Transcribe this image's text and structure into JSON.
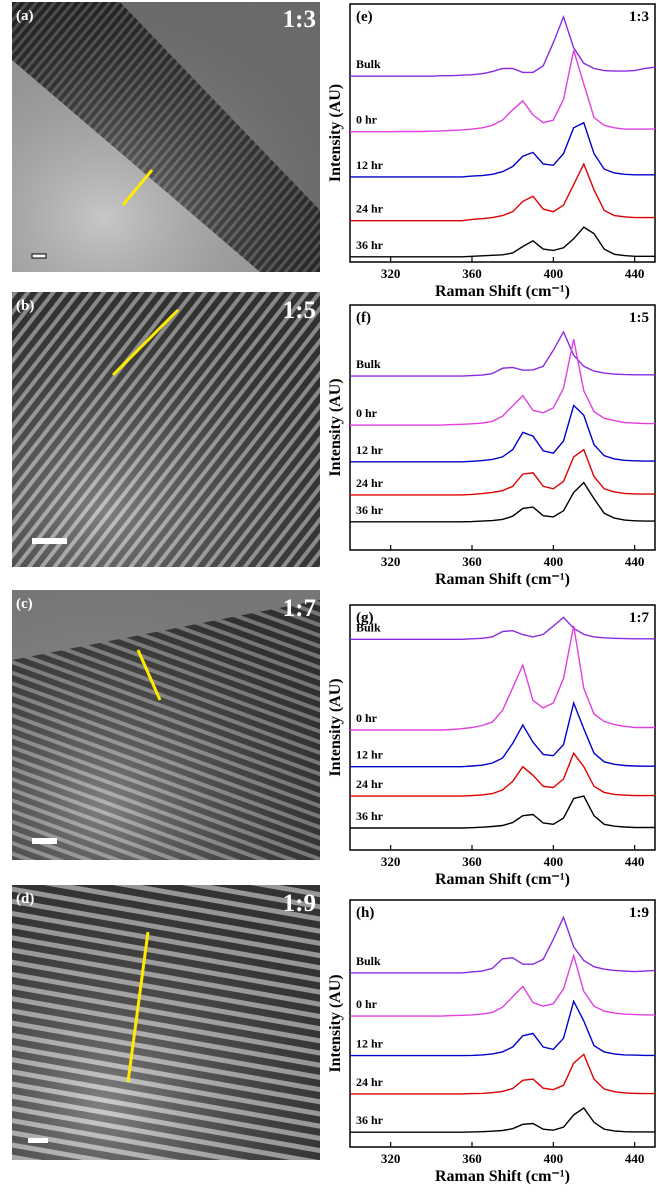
{
  "images": [
    {
      "label": "(a)",
      "ratio": "1:3"
    },
    {
      "label": "(b)",
      "ratio": "1:5"
    },
    {
      "label": "(c)",
      "ratio": "1:7"
    },
    {
      "label": "(d)",
      "ratio": "1:9"
    }
  ],
  "chart_data": [
    {
      "type": "line",
      "panel_label": "(e)",
      "annotation": "1:3",
      "x_label": "Raman Shift (cm⁻¹)",
      "y_label": "Intensity (AU)",
      "xlim": [
        300,
        450
      ],
      "xticks": [
        320,
        360,
        400,
        440
      ],
      "ylim": [
        0,
        10
      ],
      "x": [
        300,
        305,
        310,
        315,
        320,
        325,
        330,
        335,
        340,
        345,
        350,
        355,
        360,
        365,
        370,
        375,
        380,
        385,
        390,
        395,
        400,
        405,
        410,
        415,
        420,
        425,
        430,
        435,
        440,
        445,
        450
      ],
      "series": [
        {
          "name": "Bulk",
          "color": "#8a2be2",
          "values": [
            7.2,
            7.2,
            7.2,
            7.2,
            7.2,
            7.2,
            7.2,
            7.2,
            7.2,
            7.22,
            7.22,
            7.24,
            7.26,
            7.3,
            7.38,
            7.5,
            7.5,
            7.35,
            7.35,
            7.6,
            8.5,
            9.5,
            8.3,
            7.7,
            7.5,
            7.42,
            7.4,
            7.4,
            7.42,
            7.5,
            7.55
          ]
        },
        {
          "name": "0 hr",
          "color": "#e040e0",
          "values": [
            5.05,
            5.05,
            5.05,
            5.05,
            5.05,
            5.06,
            5.06,
            5.06,
            5.07,
            5.08,
            5.1,
            5.12,
            5.15,
            5.2,
            5.3,
            5.5,
            5.9,
            6.25,
            5.7,
            5.4,
            5.5,
            6.3,
            8.2,
            6.9,
            5.6,
            5.3,
            5.2,
            5.15,
            5.15,
            5.15,
            5.15
          ]
        },
        {
          "name": "12 hr",
          "color": "#0000cc",
          "values": [
            3.3,
            3.3,
            3.3,
            3.3,
            3.3,
            3.3,
            3.3,
            3.3,
            3.3,
            3.3,
            3.3,
            3.3,
            3.33,
            3.35,
            3.4,
            3.5,
            3.7,
            4.1,
            4.25,
            3.8,
            3.75,
            4.2,
            5.2,
            5.4,
            4.2,
            3.6,
            3.45,
            3.4,
            3.38,
            3.38,
            3.38
          ]
        },
        {
          "name": "24 hr",
          "color": "#dd0000",
          "values": [
            1.6,
            1.6,
            1.6,
            1.6,
            1.6,
            1.6,
            1.6,
            1.6,
            1.6,
            1.6,
            1.6,
            1.6,
            1.65,
            1.68,
            1.72,
            1.8,
            1.95,
            2.35,
            2.55,
            2.05,
            1.95,
            2.2,
            3.0,
            3.8,
            2.8,
            2.0,
            1.8,
            1.75,
            1.72,
            1.72,
            1.72
          ]
        },
        {
          "name": "36 hr",
          "color": "#000000",
          "values": [
            0.2,
            0.2,
            0.2,
            0.2,
            0.2,
            0.2,
            0.2,
            0.2,
            0.2,
            0.2,
            0.2,
            0.2,
            0.22,
            0.24,
            0.26,
            0.28,
            0.35,
            0.6,
            0.82,
            0.5,
            0.45,
            0.55,
            0.9,
            1.35,
            1.1,
            0.5,
            0.3,
            0.25,
            0.22,
            0.22,
            0.22
          ]
        }
      ]
    },
    {
      "type": "line",
      "panel_label": "(f)",
      "annotation": "1:5",
      "x_label": "Raman Shift (cm⁻¹)",
      "y_label": "Intensity (AU)",
      "xlim": [
        300,
        450
      ],
      "xticks": [
        320,
        360,
        400,
        440
      ],
      "ylim": [
        0,
        10
      ],
      "x": [
        300,
        305,
        310,
        315,
        320,
        325,
        330,
        335,
        340,
        345,
        350,
        355,
        360,
        365,
        370,
        375,
        380,
        385,
        390,
        395,
        400,
        405,
        410,
        415,
        420,
        425,
        430,
        435,
        440,
        445,
        450
      ],
      "series": [
        {
          "name": "Bulk",
          "color": "#8a2be2",
          "values": [
            7.1,
            7.1,
            7.1,
            7.1,
            7.1,
            7.1,
            7.1,
            7.1,
            7.1,
            7.1,
            7.1,
            7.1,
            7.12,
            7.14,
            7.2,
            7.42,
            7.45,
            7.34,
            7.35,
            7.5,
            8.15,
            8.9,
            7.95,
            7.5,
            7.3,
            7.22,
            7.18,
            7.16,
            7.15,
            7.15,
            7.15
          ]
        },
        {
          "name": "0 hr",
          "color": "#e040e0",
          "values": [
            5.1,
            5.1,
            5.1,
            5.1,
            5.1,
            5.1,
            5.1,
            5.1,
            5.1,
            5.1,
            5.12,
            5.13,
            5.15,
            5.18,
            5.25,
            5.46,
            5.88,
            6.3,
            5.7,
            5.6,
            5.8,
            6.6,
            8.6,
            6.5,
            5.65,
            5.38,
            5.28,
            5.2,
            5.18,
            5.16,
            5.16
          ]
        },
        {
          "name": "12 hr",
          "color": "#0000cc",
          "values": [
            3.6,
            3.6,
            3.6,
            3.6,
            3.6,
            3.6,
            3.6,
            3.6,
            3.6,
            3.6,
            3.6,
            3.6,
            3.62,
            3.65,
            3.7,
            3.8,
            4.1,
            4.8,
            4.65,
            4.05,
            3.95,
            4.45,
            5.9,
            5.5,
            4.3,
            3.85,
            3.72,
            3.66,
            3.64,
            3.63,
            3.63
          ]
        },
        {
          "name": "24 hr",
          "color": "#dd0000",
          "values": [
            2.25,
            2.25,
            2.25,
            2.25,
            2.25,
            2.25,
            2.25,
            2.25,
            2.25,
            2.25,
            2.25,
            2.25,
            2.27,
            2.3,
            2.35,
            2.42,
            2.6,
            3.1,
            3.15,
            2.6,
            2.5,
            2.8,
            3.8,
            4.1,
            3.0,
            2.5,
            2.37,
            2.31,
            2.29,
            2.28,
            2.28
          ]
        },
        {
          "name": "36 hr",
          "color": "#000000",
          "values": [
            1.15,
            1.15,
            1.15,
            1.15,
            1.15,
            1.15,
            1.15,
            1.15,
            1.15,
            1.15,
            1.15,
            1.15,
            1.16,
            1.18,
            1.2,
            1.25,
            1.38,
            1.7,
            1.75,
            1.4,
            1.35,
            1.6,
            2.35,
            2.75,
            2.1,
            1.5,
            1.3,
            1.22,
            1.19,
            1.18,
            1.18
          ]
        }
      ]
    },
    {
      "type": "line",
      "panel_label": "(g)",
      "annotation": "1:7",
      "x_label": "Raman Shift (cm⁻¹)",
      "y_label": "Intensity (AU)",
      "xlim": [
        300,
        450
      ],
      "xticks": [
        320,
        360,
        400,
        440
      ],
      "ylim": [
        0,
        10
      ],
      "x": [
        300,
        305,
        310,
        315,
        320,
        325,
        330,
        335,
        340,
        345,
        350,
        355,
        360,
        365,
        370,
        375,
        380,
        385,
        390,
        395,
        400,
        405,
        410,
        415,
        420,
        425,
        430,
        435,
        440,
        445,
        450
      ],
      "series": [
        {
          "name": "Bulk",
          "color": "#8a2be2",
          "values": [
            8.6,
            8.6,
            8.6,
            8.6,
            8.6,
            8.6,
            8.6,
            8.6,
            8.6,
            8.6,
            8.6,
            8.6,
            8.62,
            8.64,
            8.7,
            8.92,
            8.95,
            8.79,
            8.7,
            8.8,
            9.14,
            9.5,
            9.05,
            8.8,
            8.7,
            8.66,
            8.64,
            8.63,
            8.62,
            8.62,
            8.62
          ]
        },
        {
          "name": "0 hr",
          "color": "#e040e0",
          "values": [
            4.9,
            4.9,
            4.9,
            4.9,
            4.9,
            4.9,
            4.9,
            4.9,
            4.9,
            4.9,
            4.92,
            4.95,
            5.0,
            5.08,
            5.22,
            5.7,
            6.62,
            7.55,
            6.1,
            5.8,
            6.0,
            7.0,
            9.15,
            6.6,
            5.55,
            5.25,
            5.12,
            5.05,
            5.0,
            5.0,
            5.0
          ]
        },
        {
          "name": "12 hr",
          "color": "#0000cc",
          "values": [
            3.4,
            3.4,
            3.4,
            3.4,
            3.4,
            3.4,
            3.4,
            3.4,
            3.4,
            3.4,
            3.4,
            3.4,
            3.43,
            3.46,
            3.55,
            3.75,
            4.35,
            5.1,
            4.4,
            3.9,
            3.85,
            4.3,
            6.0,
            4.95,
            3.95,
            3.6,
            3.5,
            3.45,
            3.43,
            3.42,
            3.42
          ]
        },
        {
          "name": "24 hr",
          "color": "#dd0000",
          "values": [
            2.2,
            2.2,
            2.2,
            2.2,
            2.2,
            2.2,
            2.2,
            2.2,
            2.2,
            2.2,
            2.2,
            2.2,
            2.22,
            2.25,
            2.3,
            2.45,
            2.8,
            3.4,
            3.05,
            2.6,
            2.55,
            2.9,
            3.95,
            3.4,
            2.6,
            2.35,
            2.27,
            2.24,
            2.22,
            2.22,
            2.22
          ]
        },
        {
          "name": "36 hr",
          "color": "#000000",
          "values": [
            0.9,
            0.9,
            0.9,
            0.9,
            0.9,
            0.9,
            0.9,
            0.9,
            0.9,
            0.9,
            0.9,
            0.9,
            0.91,
            0.93,
            0.96,
            1.0,
            1.12,
            1.4,
            1.45,
            1.1,
            1.05,
            1.3,
            2.1,
            2.2,
            1.4,
            1.05,
            0.97,
            0.94,
            0.92,
            0.92,
            0.92
          ]
        }
      ]
    },
    {
      "type": "line",
      "panel_label": "(h)",
      "annotation": "1:9",
      "x_label": "Raman Shift (cm⁻¹)",
      "y_label": "Intensity (AU)",
      "xlim": [
        300,
        450
      ],
      "xticks": [
        320,
        360,
        400,
        440
      ],
      "ylim": [
        0,
        10
      ],
      "x": [
        300,
        305,
        310,
        315,
        320,
        325,
        330,
        335,
        340,
        345,
        350,
        355,
        360,
        365,
        370,
        375,
        380,
        385,
        390,
        395,
        400,
        405,
        410,
        415,
        420,
        425,
        430,
        435,
        440,
        445,
        450
      ],
      "series": [
        {
          "name": "Bulk",
          "color": "#8a2be2",
          "values": [
            7.05,
            7.05,
            7.05,
            7.05,
            7.05,
            7.05,
            7.05,
            7.05,
            7.05,
            7.05,
            7.05,
            7.05,
            7.09,
            7.12,
            7.23,
            7.62,
            7.66,
            7.4,
            7.4,
            7.6,
            8.4,
            9.3,
            8.1,
            7.55,
            7.3,
            7.2,
            7.15,
            7.12,
            7.1,
            7.12,
            7.15
          ]
        },
        {
          "name": "0 hr",
          "color": "#e040e0",
          "values": [
            5.3,
            5.3,
            5.3,
            5.3,
            5.3,
            5.3,
            5.3,
            5.3,
            5.3,
            5.3,
            5.32,
            5.33,
            5.35,
            5.38,
            5.45,
            5.66,
            6.08,
            6.5,
            5.85,
            5.7,
            5.8,
            6.4,
            7.75,
            6.3,
            5.7,
            5.5,
            5.42,
            5.38,
            5.36,
            5.35,
            5.35
          ]
        },
        {
          "name": "12 hr",
          "color": "#0000cc",
          "values": [
            3.7,
            3.7,
            3.7,
            3.7,
            3.7,
            3.7,
            3.7,
            3.7,
            3.7,
            3.7,
            3.7,
            3.7,
            3.71,
            3.73,
            3.77,
            3.85,
            4.05,
            4.5,
            4.6,
            4.05,
            3.95,
            4.4,
            5.9,
            5.1,
            4.1,
            3.85,
            3.77,
            3.73,
            3.72,
            3.71,
            3.71
          ]
        },
        {
          "name": "24 hr",
          "color": "#dd0000",
          "values": [
            2.15,
            2.15,
            2.15,
            2.15,
            2.15,
            2.15,
            2.15,
            2.15,
            2.15,
            2.15,
            2.15,
            2.15,
            2.16,
            2.17,
            2.2,
            2.25,
            2.37,
            2.7,
            2.75,
            2.38,
            2.32,
            2.5,
            3.4,
            3.75,
            2.75,
            2.35,
            2.24,
            2.19,
            2.17,
            2.16,
            2.16
          ]
        },
        {
          "name": "36 hr",
          "color": "#000000",
          "values": [
            0.6,
            0.6,
            0.6,
            0.6,
            0.6,
            0.6,
            0.6,
            0.6,
            0.6,
            0.6,
            0.6,
            0.6,
            0.61,
            0.62,
            0.64,
            0.67,
            0.74,
            0.92,
            0.95,
            0.72,
            0.68,
            0.8,
            1.3,
            1.58,
            1.0,
            0.72,
            0.65,
            0.62,
            0.61,
            0.61,
            0.61
          ]
        }
      ]
    }
  ]
}
